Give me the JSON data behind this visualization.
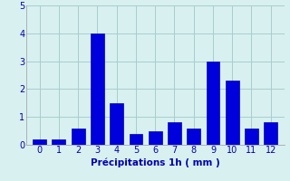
{
  "categories": [
    0,
    1,
    2,
    3,
    4,
    5,
    6,
    7,
    8,
    9,
    10,
    11,
    12
  ],
  "values": [
    0.2,
    0.2,
    0.6,
    4.0,
    1.5,
    0.4,
    0.5,
    0.8,
    0.6,
    3.0,
    2.3,
    0.6,
    0.8
  ],
  "bar_color": "#0000dd",
  "bar_edge_color": "#0000aa",
  "background_color": "#d8f0f0",
  "grid_color": "#aacccc",
  "xlabel": "Précipitations 1h ( mm )",
  "ylim": [
    0,
    5
  ],
  "yticks": [
    0,
    1,
    2,
    3,
    4,
    5
  ],
  "xlabel_fontsize": 7.5,
  "tick_fontsize": 7,
  "tick_color": "#0000aa"
}
